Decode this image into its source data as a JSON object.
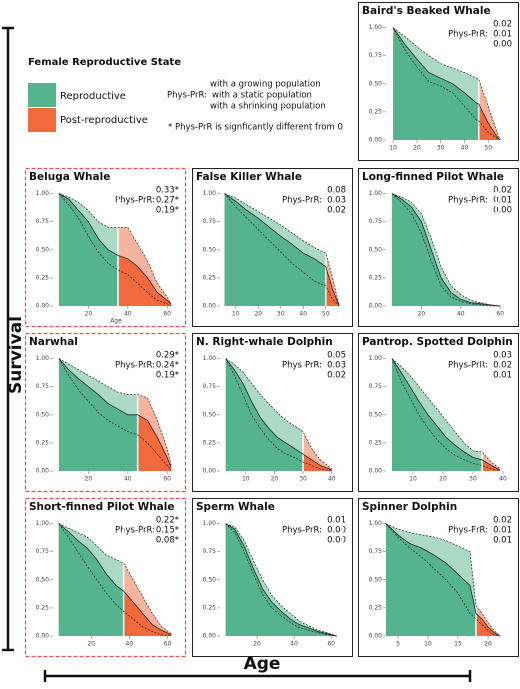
{
  "axis_labels": {
    "y": "Survival",
    "x": "Age"
  },
  "legend": {
    "title": "Female Reproductive State",
    "items": [
      "Reproductive",
      "Post-reproductive"
    ]
  },
  "phys_note": {
    "label": "Phys-PrR:",
    "lines": [
      "with a growing population",
      "with a static population",
      "with a shrinking population"
    ],
    "footnote": "* Phys-PrR is signficantly different from 0"
  },
  "colors": {
    "reproductive": "#55b48f",
    "reproductive_light": "#acd9c5",
    "post": "#f2693c",
    "post_light": "#f6b39e"
  },
  "panel_y": {
    "ylim": [
      0,
      1.05
    ],
    "yticks": [
      {
        "value": 0,
        "label": "0.00"
      },
      {
        "value": 0.25,
        "label": "0.25"
      },
      {
        "value": 0.5,
        "label": "0.50"
      },
      {
        "value": 0.75,
        "label": "0.75"
      },
      {
        "value": 1,
        "label": "1.00"
      }
    ]
  },
  "chart_data": [
    {
      "type": "survival",
      "title": "Baird's Beaked Whale",
      "annotations": [
        "0.02",
        "0.01",
        "0.00"
      ],
      "highlight": false,
      "xlim": [
        7,
        60
      ],
      "xticks": [
        10,
        20,
        30,
        40,
        50
      ],
      "reproductive_end": 46,
      "x": [
        10,
        15,
        20,
        25,
        30,
        35,
        40,
        45,
        46,
        50,
        54,
        55
      ],
      "values": [
        1,
        0.85,
        0.72,
        0.6,
        0.55,
        0.5,
        0.42,
        0.33,
        0.32,
        0.15,
        0.02,
        0
      ],
      "upper": [
        1,
        0.92,
        0.83,
        0.75,
        0.68,
        0.64,
        0.6,
        0.55,
        0.54,
        0.3,
        0.05,
        0
      ],
      "lower": [
        1,
        0.8,
        0.65,
        0.52,
        0.48,
        0.42,
        0.3,
        0.18,
        0.17,
        0.07,
        0.01,
        0
      ]
    },
    {
      "type": "survival",
      "title": "Beluga Whale",
      "annotations": [
        "0.33*",
        "0.27*",
        "0.19*"
      ],
      "highlight": true,
      "xlabel": "Age",
      "xlim": [
        2,
        66
      ],
      "xticks": [
        20,
        40,
        60
      ],
      "reproductive_end": 35,
      "x": [
        5,
        10,
        15,
        20,
        25,
        30,
        35,
        40,
        45,
        50,
        55,
        60,
        62
      ],
      "values": [
        1,
        0.95,
        0.85,
        0.75,
        0.6,
        0.5,
        0.45,
        0.42,
        0.35,
        0.25,
        0.12,
        0.05,
        0.02
      ],
      "upper": [
        1,
        0.97,
        0.92,
        0.85,
        0.75,
        0.7,
        0.7,
        0.7,
        0.55,
        0.4,
        0.2,
        0.08,
        0.02
      ],
      "lower": [
        1,
        0.9,
        0.78,
        0.62,
        0.48,
        0.38,
        0.32,
        0.28,
        0.2,
        0.12,
        0.05,
        0.02,
        0
      ]
    },
    {
      "type": "survival",
      "title": "False Killer Whale",
      "annotations": [
        "0.08",
        "0.03",
        "0.02"
      ],
      "highlight": false,
      "xlim": [
        3,
        59
      ],
      "xticks": [
        10,
        20,
        30,
        40,
        50
      ],
      "reproductive_end": 50,
      "x": [
        5,
        10,
        15,
        20,
        25,
        30,
        35,
        40,
        45,
        50,
        53,
        56
      ],
      "values": [
        1,
        0.93,
        0.85,
        0.78,
        0.7,
        0.62,
        0.55,
        0.47,
        0.42,
        0.35,
        0.15,
        0
      ],
      "upper": [
        1,
        0.96,
        0.9,
        0.84,
        0.78,
        0.72,
        0.65,
        0.58,
        0.52,
        0.47,
        0.25,
        0
      ],
      "lower": [
        1,
        0.88,
        0.78,
        0.68,
        0.58,
        0.48,
        0.38,
        0.3,
        0.22,
        0.18,
        0.06,
        0
      ]
    },
    {
      "type": "survival",
      "title": "Long-finned Pilot Whale",
      "annotations": [
        "0.02",
        "0.01",
        "0.00"
      ],
      "highlight": false,
      "xlim": [
        2,
        66
      ],
      "xticks": [
        20,
        40,
        60
      ],
      "reproductive_end": 58,
      "x": [
        5,
        10,
        15,
        20,
        25,
        30,
        35,
        40,
        45,
        50,
        55,
        60
      ],
      "values": [
        1,
        0.95,
        0.88,
        0.75,
        0.5,
        0.25,
        0.12,
        0.06,
        0.03,
        0.02,
        0.01,
        0
      ],
      "upper": [
        1,
        0.97,
        0.92,
        0.82,
        0.6,
        0.35,
        0.18,
        0.1,
        0.05,
        0.03,
        0.01,
        0
      ],
      "lower": [
        1,
        0.92,
        0.82,
        0.65,
        0.4,
        0.18,
        0.08,
        0.04,
        0.02,
        0.01,
        0,
        0
      ]
    },
    {
      "type": "survival",
      "title": "Narwhal",
      "annotations": [
        "0.29*",
        "0.24*",
        "0.19*"
      ],
      "highlight": true,
      "xlim": [
        2,
        66
      ],
      "xticks": [
        20,
        40,
        60
      ],
      "reproductive_end": 45,
      "x": [
        5,
        10,
        15,
        20,
        25,
        30,
        35,
        40,
        45,
        50,
        55,
        60,
        62
      ],
      "values": [
        1,
        0.9,
        0.82,
        0.75,
        0.68,
        0.6,
        0.55,
        0.5,
        0.5,
        0.45,
        0.3,
        0.12,
        0.03
      ],
      "upper": [
        1,
        0.95,
        0.9,
        0.85,
        0.8,
        0.75,
        0.7,
        0.68,
        0.68,
        0.65,
        0.45,
        0.2,
        0.05
      ],
      "lower": [
        1,
        0.85,
        0.72,
        0.62,
        0.52,
        0.45,
        0.4,
        0.35,
        0.32,
        0.25,
        0.15,
        0.05,
        0
      ]
    },
    {
      "type": "survival",
      "title": "N. Right-whale Dolphin",
      "annotations": [
        "0.05",
        "0.03",
        "0.02"
      ],
      "highlight": false,
      "xlim": [
        1,
        45
      ],
      "xticks": [
        10,
        20,
        30,
        40
      ],
      "reproductive_end": 30,
      "x": [
        3,
        6,
        9,
        12,
        15,
        18,
        21,
        24,
        27,
        30,
        33,
        36,
        40
      ],
      "values": [
        1,
        0.9,
        0.78,
        0.62,
        0.48,
        0.38,
        0.3,
        0.25,
        0.2,
        0.15,
        0.1,
        0.05,
        0.01
      ],
      "upper": [
        1,
        0.95,
        0.88,
        0.78,
        0.68,
        0.6,
        0.52,
        0.45,
        0.4,
        0.35,
        0.2,
        0.1,
        0.02
      ],
      "lower": [
        1,
        0.85,
        0.68,
        0.5,
        0.38,
        0.28,
        0.2,
        0.15,
        0.12,
        0.08,
        0.05,
        0.02,
        0
      ]
    },
    {
      "type": "survival",
      "title": "Pantrop. Spotted Dolphin",
      "annotations": [
        "0.03",
        "0.02",
        "0.01"
      ],
      "highlight": false,
      "xlim": [
        1,
        43
      ],
      "xticks": [
        10,
        20,
        30,
        40
      ],
      "reproductive_end": 33,
      "x": [
        3,
        6,
        9,
        12,
        15,
        18,
        21,
        24,
        27,
        30,
        33,
        36,
        39
      ],
      "values": [
        1,
        0.88,
        0.75,
        0.62,
        0.5,
        0.4,
        0.3,
        0.23,
        0.17,
        0.12,
        0.1,
        0.05,
        0.01
      ],
      "upper": [
        1,
        0.93,
        0.85,
        0.75,
        0.65,
        0.55,
        0.45,
        0.35,
        0.25,
        0.18,
        0.17,
        0.08,
        0.02
      ],
      "lower": [
        1,
        0.8,
        0.65,
        0.5,
        0.38,
        0.28,
        0.2,
        0.14,
        0.1,
        0.07,
        0.05,
        0.02,
        0
      ]
    },
    {
      "type": "survival",
      "title": "Short-finned Pilot Whale",
      "annotations": [
        "0.22*",
        "0.15*",
        "0.08*"
      ],
      "highlight": true,
      "xlim": [
        0,
        66
      ],
      "xticks": [
        20,
        40,
        60
      ],
      "reproductive_end": 37,
      "x": [
        3,
        8,
        13,
        18,
        23,
        28,
        33,
        37,
        42,
        47,
        52,
        57,
        62
      ],
      "values": [
        1,
        0.93,
        0.85,
        0.78,
        0.68,
        0.55,
        0.45,
        0.4,
        0.3,
        0.2,
        0.1,
        0.05,
        0.01
      ],
      "upper": [
        1,
        0.96,
        0.92,
        0.88,
        0.8,
        0.72,
        0.68,
        0.65,
        0.5,
        0.35,
        0.2,
        0.08,
        0.02
      ],
      "lower": [
        1,
        0.88,
        0.75,
        0.62,
        0.5,
        0.38,
        0.28,
        0.22,
        0.15,
        0.08,
        0.04,
        0.01,
        0
      ]
    },
    {
      "type": "survival",
      "title": "Sperm Whale",
      "annotations": [
        "0.01",
        "0.00",
        "0.00"
      ],
      "highlight": false,
      "xlim": [
        0,
        68
      ],
      "xticks": [
        20,
        40,
        60
      ],
      "reproductive_end": 66,
      "x": [
        3,
        8,
        13,
        18,
        23,
        28,
        33,
        38,
        43,
        48,
        53,
        58,
        63
      ],
      "values": [
        1,
        0.95,
        0.8,
        0.6,
        0.42,
        0.3,
        0.22,
        0.15,
        0.1,
        0.07,
        0.04,
        0.02,
        0
      ],
      "upper": [
        1,
        0.97,
        0.85,
        0.67,
        0.5,
        0.36,
        0.27,
        0.2,
        0.13,
        0.09,
        0.05,
        0.03,
        0
      ],
      "lower": [
        1,
        0.92,
        0.75,
        0.55,
        0.37,
        0.25,
        0.18,
        0.12,
        0.07,
        0.05,
        0.03,
        0.01,
        0
      ]
    },
    {
      "type": "survival",
      "title": "Spinner Dolphin",
      "annotations": [
        "0.02",
        "0.01",
        "0.01"
      ],
      "highlight": false,
      "xlim": [
        3,
        24
      ],
      "xticks": [
        5,
        10,
        15,
        20
      ],
      "reproductive_end": 18,
      "x": [
        3,
        5,
        7,
        9,
        11,
        13,
        15,
        17,
        18,
        19,
        20,
        21,
        22
      ],
      "values": [
        1,
        0.9,
        0.82,
        0.78,
        0.72,
        0.65,
        0.55,
        0.45,
        0.2,
        0.15,
        0.08,
        0.03,
        0
      ],
      "upper": [
        1,
        0.95,
        0.92,
        0.9,
        0.88,
        0.85,
        0.8,
        0.75,
        0.27,
        0.2,
        0.12,
        0.05,
        0
      ],
      "lower": [
        1,
        0.88,
        0.78,
        0.7,
        0.6,
        0.5,
        0.38,
        0.2,
        0.15,
        0.1,
        0.05,
        0.01,
        0
      ]
    }
  ]
}
